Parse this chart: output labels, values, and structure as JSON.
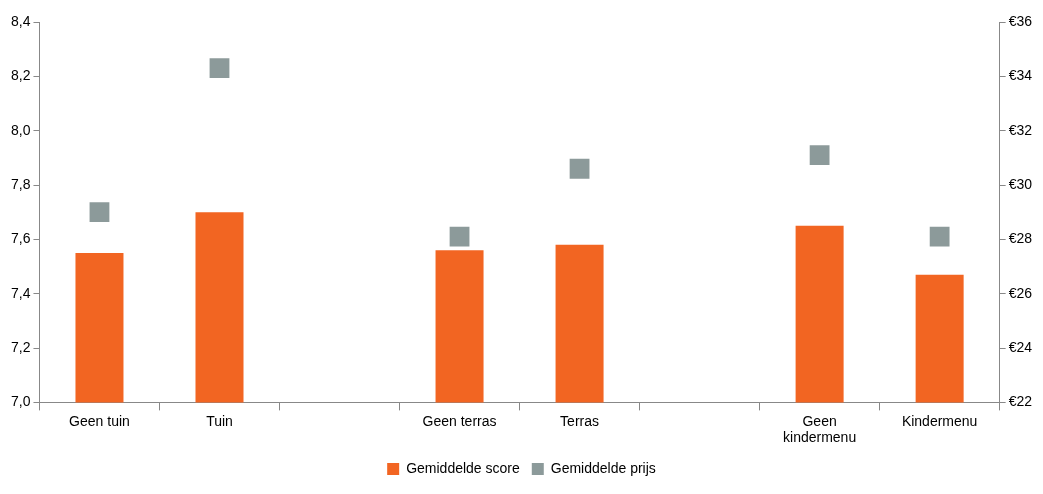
{
  "chart_data": {
    "type": "bar",
    "categories": [
      "Geen tuin",
      "Tuin",
      null,
      "Geen terras",
      "Terras",
      null,
      "Geen kindermenu",
      "Kindermenu"
    ],
    "series": [
      {
        "name": "Gemiddelde score",
        "color": "#f26522",
        "values": [
          7.55,
          7.7,
          null,
          7.56,
          7.58,
          null,
          7.65,
          7.47
        ]
      },
      {
        "name": "Gemiddelde prijs",
        "type": "scatter",
        "axis": "y2",
        "marker": "square",
        "color": "#8c9a9a",
        "values": [
          29.0,
          34.3,
          null,
          28.1,
          30.6,
          null,
          31.1,
          28.1
        ]
      }
    ],
    "ylim": [
      7.0,
      8.4
    ],
    "yticks": [
      {
        "value": 7.0,
        "label": "7,0"
      },
      {
        "value": 7.2,
        "label": "7,2"
      },
      {
        "value": 7.4,
        "label": "7,4"
      },
      {
        "value": 7.6,
        "label": "7,6"
      },
      {
        "value": 7.8,
        "label": "7,8"
      },
      {
        "value": 8.0,
        "label": "8,0"
      },
      {
        "value": 8.2,
        "label": "8,2"
      },
      {
        "value": 8.4,
        "label": "8,4"
      }
    ],
    "y2lim": [
      22,
      36
    ],
    "y2ticks": [
      {
        "value": 22,
        "label": "€22"
      },
      {
        "value": 24,
        "label": "€24"
      },
      {
        "value": 26,
        "label": "€26"
      },
      {
        "value": 28,
        "label": "€28"
      },
      {
        "value": 30,
        "label": "€30"
      },
      {
        "value": 32,
        "label": "€32"
      },
      {
        "value": 34,
        "label": "€34"
      },
      {
        "value": 36,
        "label": "€36"
      }
    ],
    "legend": "bottom"
  }
}
